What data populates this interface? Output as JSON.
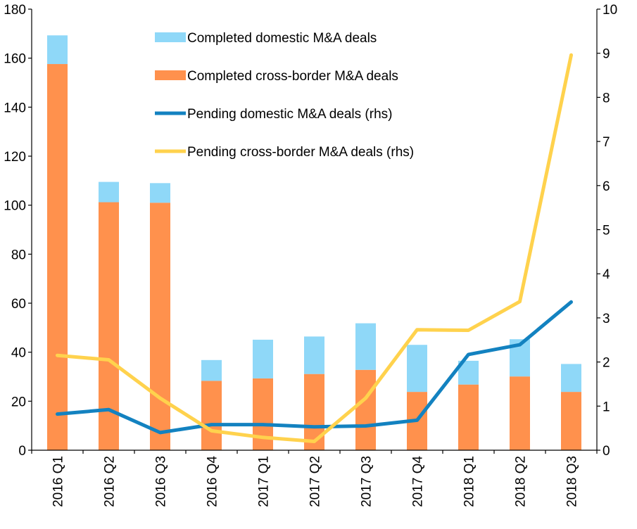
{
  "chart_data": {
    "type": "bar",
    "categories": [
      "2016 Q1",
      "2016 Q2",
      "2016 Q3",
      "2016 Q4",
      "2017 Q1",
      "2017 Q2",
      "2017 Q3",
      "2017 Q4",
      "2018 Q1",
      "2018 Q2",
      "2018 Q3"
    ],
    "series": [
      {
        "name": "Completed domestic M&A deals",
        "kind": "bar-stacked",
        "axis": "left",
        "color": "#8fd8f8",
        "values": [
          11.7,
          8.3,
          8.0,
          8.5,
          15.8,
          15.3,
          19.0,
          19.2,
          9.7,
          15.2,
          11.4
        ]
      },
      {
        "name": "Completed cross-border M&A deals",
        "kind": "bar",
        "axis": "left",
        "color": "#ff914d",
        "values": [
          157.6,
          101.2,
          101.0,
          28.3,
          29.3,
          31.1,
          32.8,
          23.8,
          26.8,
          30.1,
          23.8
        ]
      },
      {
        "name": "Pending domestic M&A deals  (rhs)",
        "kind": "line",
        "axis": "right",
        "color": "#1382c0",
        "values": [
          0.82,
          0.92,
          0.4,
          0.58,
          0.58,
          0.53,
          0.55,
          0.68,
          2.17,
          2.39,
          3.36
        ]
      },
      {
        "name": "Pending cross-border M&A deals (rhs)",
        "kind": "line",
        "axis": "right",
        "color": "#ffd24d",
        "values": [
          2.15,
          2.05,
          1.18,
          0.44,
          0.29,
          0.2,
          1.18,
          2.73,
          2.72,
          3.37,
          8.96
        ]
      }
    ],
    "legend_order": [
      0,
      1,
      2,
      3
    ],
    "y_left": {
      "min": 0,
      "max": 180,
      "ticks": [
        0,
        20,
        40,
        60,
        80,
        100,
        120,
        140,
        160,
        180
      ]
    },
    "y_right": {
      "min": 0,
      "max": 10,
      "ticks": [
        0,
        1,
        2,
        3,
        4,
        5,
        6,
        7,
        8,
        9,
        10
      ]
    },
    "title": "",
    "xlabel": "",
    "ylabel": "",
    "ylabel_right": "",
    "legend": "top-center",
    "grid": false
  }
}
